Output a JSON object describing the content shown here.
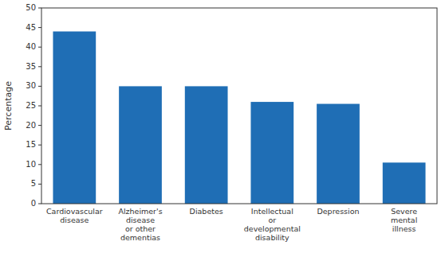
{
  "chart_data": {
    "type": "bar",
    "categories": [
      "Cardiovascular\ndisease",
      "Alzheimer's\ndisease\nor other\ndementias",
      "Diabetes",
      "Intellectual\nor\ndevelopmental\ndisability",
      "Depression",
      "Severe\nmental\nillness"
    ],
    "values": [
      44,
      30,
      30,
      26,
      25.5,
      10.5
    ],
    "color": "#1f6eb5",
    "ylabel": "Percentage",
    "ylim": [
      0,
      50
    ],
    "yticks": [
      0,
      5,
      10,
      15,
      20,
      25,
      30,
      35,
      40,
      45,
      50
    ],
    "grid": false
  }
}
